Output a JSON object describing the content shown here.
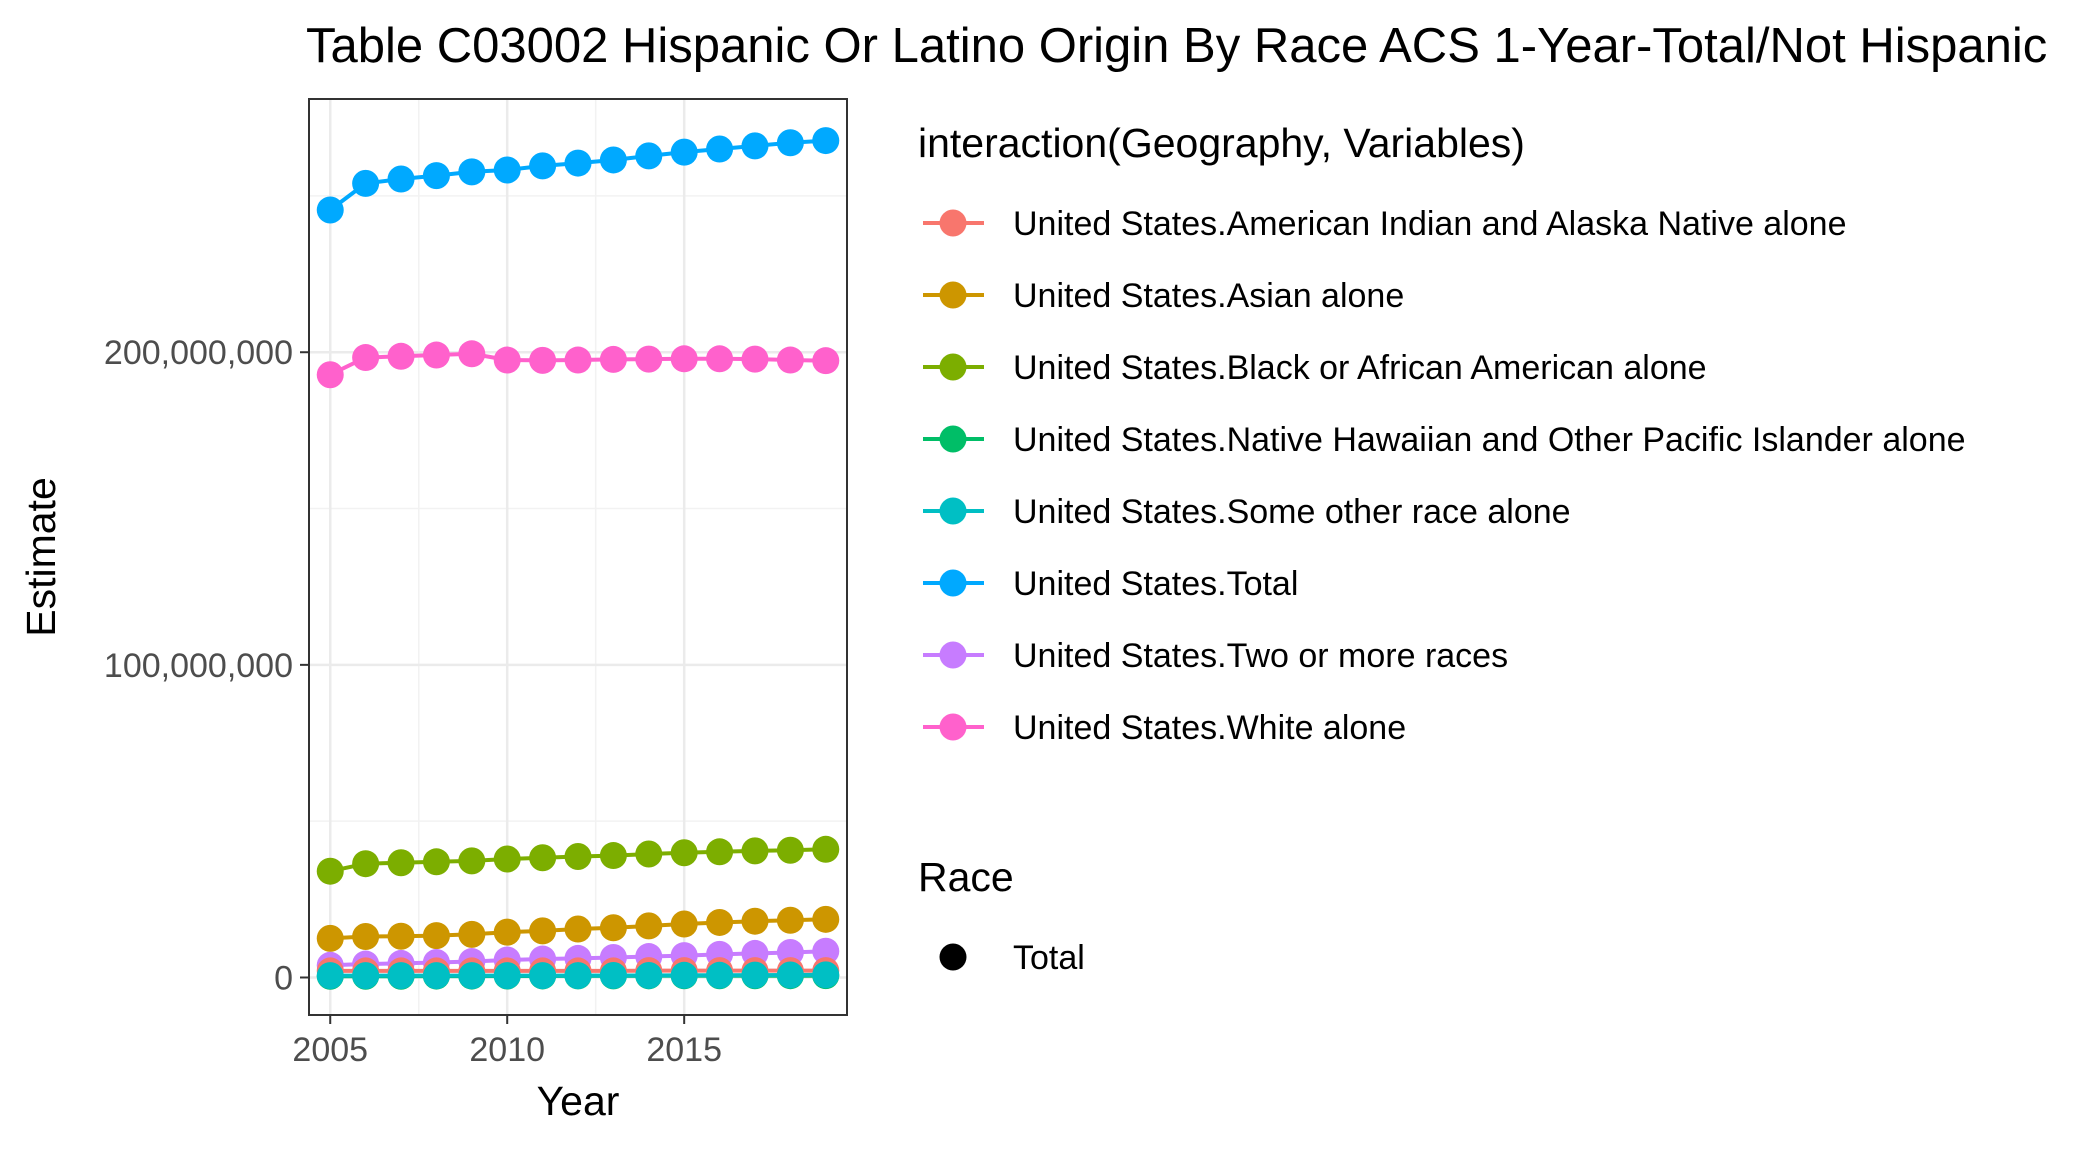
{
  "chart_data": {
    "type": "line",
    "title": "Table C03002 Hispanic Or Latino Origin By Race ACS 1-Year-Total/Not Hispanic",
    "xlabel": "Year",
    "ylabel": "Estimate",
    "xlim": [
      2004.4,
      2019.6
    ],
    "ylim": [
      -12000000,
      281000000
    ],
    "x_ticks": [
      2005,
      2010,
      2015
    ],
    "y_ticks": [
      {
        "value": 0,
        "label": "0"
      },
      {
        "value": 100000000,
        "label": "100,000,000"
      },
      {
        "value": 200000000,
        "label": "200,000,000"
      }
    ],
    "grid": true,
    "legend_position": "right",
    "x": [
      2005,
      2006,
      2007,
      2008,
      2009,
      2010,
      2011,
      2012,
      2013,
      2014,
      2015,
      2016,
      2017,
      2018,
      2019
    ],
    "series": [
      {
        "name": "United States.American Indian and Alaska Native alone",
        "color": "#F8766D",
        "values": [
          2100000,
          2100000,
          2100000,
          2100000,
          2100000,
          2100000,
          2100000,
          2100000,
          2100000,
          2200000,
          2200000,
          2200000,
          2200000,
          2200000,
          2200000
        ]
      },
      {
        "name": "United States.Asian alone",
        "color": "#CD9600",
        "values": [
          12500000,
          13100000,
          13200000,
          13400000,
          13800000,
          14500000,
          14900000,
          15500000,
          15900000,
          16500000,
          17100000,
          17600000,
          18000000,
          18300000,
          18600000
        ]
      },
      {
        "name": "United States.Black or African American alone",
        "color": "#7CAE00",
        "values": [
          34000000,
          36400000,
          36700000,
          37000000,
          37300000,
          37900000,
          38300000,
          38700000,
          39000000,
          39500000,
          39900000,
          40200000,
          40500000,
          40700000,
          41000000
        ]
      },
      {
        "name": "United States.Native Hawaiian and Other Pacific Islander alone",
        "color": "#00BE67",
        "values": [
          400000,
          400000,
          400000,
          450000,
          450000,
          480000,
          490000,
          500000,
          520000,
          530000,
          540000,
          550000,
          560000,
          570000,
          580000
        ]
      },
      {
        "name": "United States.Some other race alone",
        "color": "#00BFC4",
        "values": [
          600000,
          600000,
          600000,
          600000,
          600000,
          600000,
          600000,
          600000,
          650000,
          650000,
          700000,
          700000,
          750000,
          800000,
          850000
        ]
      },
      {
        "name": "United States.Total",
        "color": "#00A9FF",
        "values": [
          245500000,
          254000000,
          255400000,
          256500000,
          257700000,
          258300000,
          259600000,
          260500000,
          261500000,
          262800000,
          264000000,
          265000000,
          266000000,
          267000000,
          267700000
        ]
      },
      {
        "name": "United States.Two or more races",
        "color": "#C77CFF",
        "values": [
          3900000,
          4300000,
          4500000,
          4800000,
          5100000,
          5600000,
          5900000,
          6100000,
          6400000,
          6700000,
          7000000,
          7400000,
          7700000,
          8000000,
          8400000
        ]
      },
      {
        "name": "United States.White alone",
        "color": "#FF61CC",
        "values": [
          192800000,
          198300000,
          198700000,
          199100000,
          199500000,
          197500000,
          197400000,
          197500000,
          197700000,
          197800000,
          197900000,
          197900000,
          197800000,
          197500000,
          197300000
        ]
      }
    ],
    "shape_legend": {
      "title": "Race",
      "entries": [
        {
          "label": "Total",
          "color": "#000000"
        }
      ]
    },
    "legend_title": "interaction(Geography, Variables)"
  }
}
